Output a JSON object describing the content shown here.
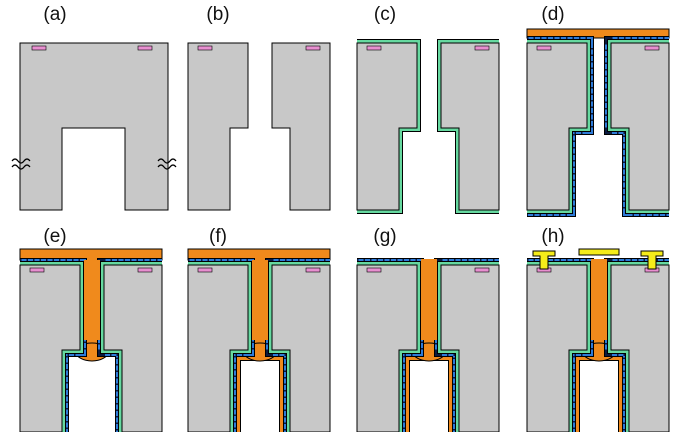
{
  "panels": [
    {
      "label": "(a)"
    },
    {
      "label": "(b)"
    },
    {
      "label": "(c)"
    },
    {
      "label": "(d)"
    },
    {
      "label": "(e)"
    },
    {
      "label": "(f)"
    },
    {
      "label": "(g)"
    },
    {
      "label": "(h)"
    }
  ]
}
